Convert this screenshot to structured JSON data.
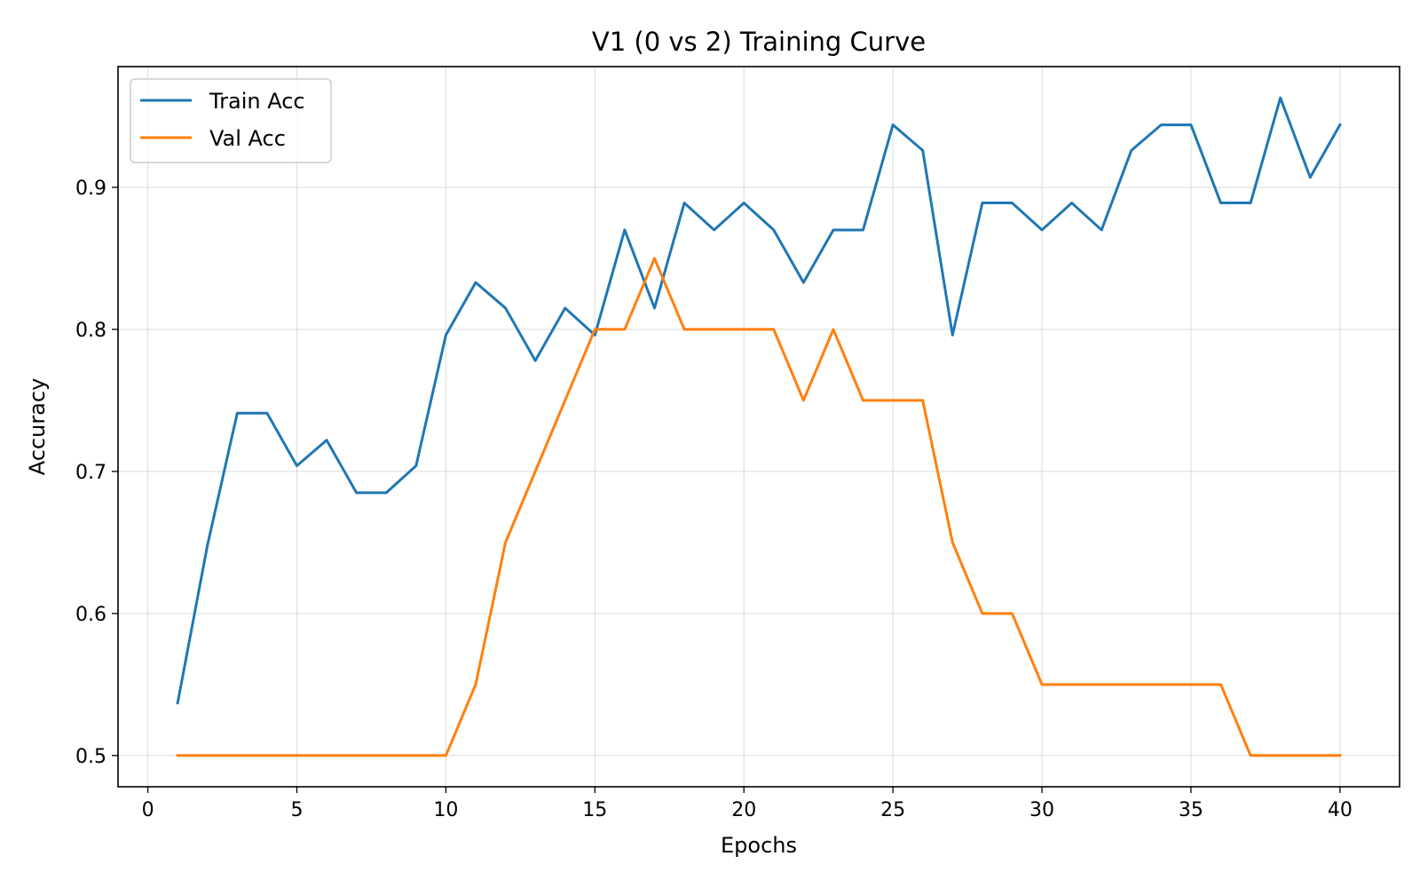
{
  "chart_data": {
    "type": "line",
    "title": "V1 (0 vs 2) Training Curve",
    "xlabel": "Epochs",
    "ylabel": "Accuracy",
    "xlim": [
      -1.0,
      42.0
    ],
    "ylim": [
      0.478,
      0.985
    ],
    "xticks": [
      0,
      5,
      10,
      15,
      20,
      25,
      30,
      35,
      40
    ],
    "yticks": [
      0.5,
      0.6,
      0.7,
      0.8,
      0.9
    ],
    "grid": true,
    "legend_position": "top-left",
    "x": [
      1,
      2,
      3,
      4,
      5,
      6,
      7,
      8,
      9,
      10,
      11,
      12,
      13,
      14,
      15,
      16,
      17,
      18,
      19,
      20,
      21,
      22,
      23,
      24,
      25,
      26,
      27,
      28,
      29,
      30,
      31,
      32,
      33,
      34,
      35,
      36,
      37,
      38,
      39,
      40
    ],
    "series": [
      {
        "name": "Train Acc",
        "color": "#1f77b4",
        "values": [
          0.537,
          0.648,
          0.741,
          0.741,
          0.704,
          0.722,
          0.685,
          0.685,
          0.704,
          0.796,
          0.833,
          0.815,
          0.778,
          0.815,
          0.796,
          0.87,
          0.815,
          0.889,
          0.87,
          0.889,
          0.87,
          0.833,
          0.87,
          0.87,
          0.944,
          0.926,
          0.796,
          0.889,
          0.889,
          0.87,
          0.889,
          0.87,
          0.926,
          0.944,
          0.944,
          0.889,
          0.889,
          0.963,
          0.907,
          0.944
        ]
      },
      {
        "name": "Val Acc",
        "color": "#ff7f0e",
        "values": [
          0.5,
          0.5,
          0.5,
          0.5,
          0.5,
          0.5,
          0.5,
          0.5,
          0.5,
          0.5,
          0.55,
          0.65,
          0.7,
          0.75,
          0.8,
          0.8,
          0.85,
          0.8,
          0.8,
          0.8,
          0.8,
          0.75,
          0.8,
          0.75,
          0.75,
          0.75,
          0.65,
          0.6,
          0.6,
          0.55,
          0.55,
          0.55,
          0.55,
          0.55,
          0.55,
          0.55,
          0.5,
          0.5,
          0.5,
          0.5
        ]
      }
    ]
  }
}
